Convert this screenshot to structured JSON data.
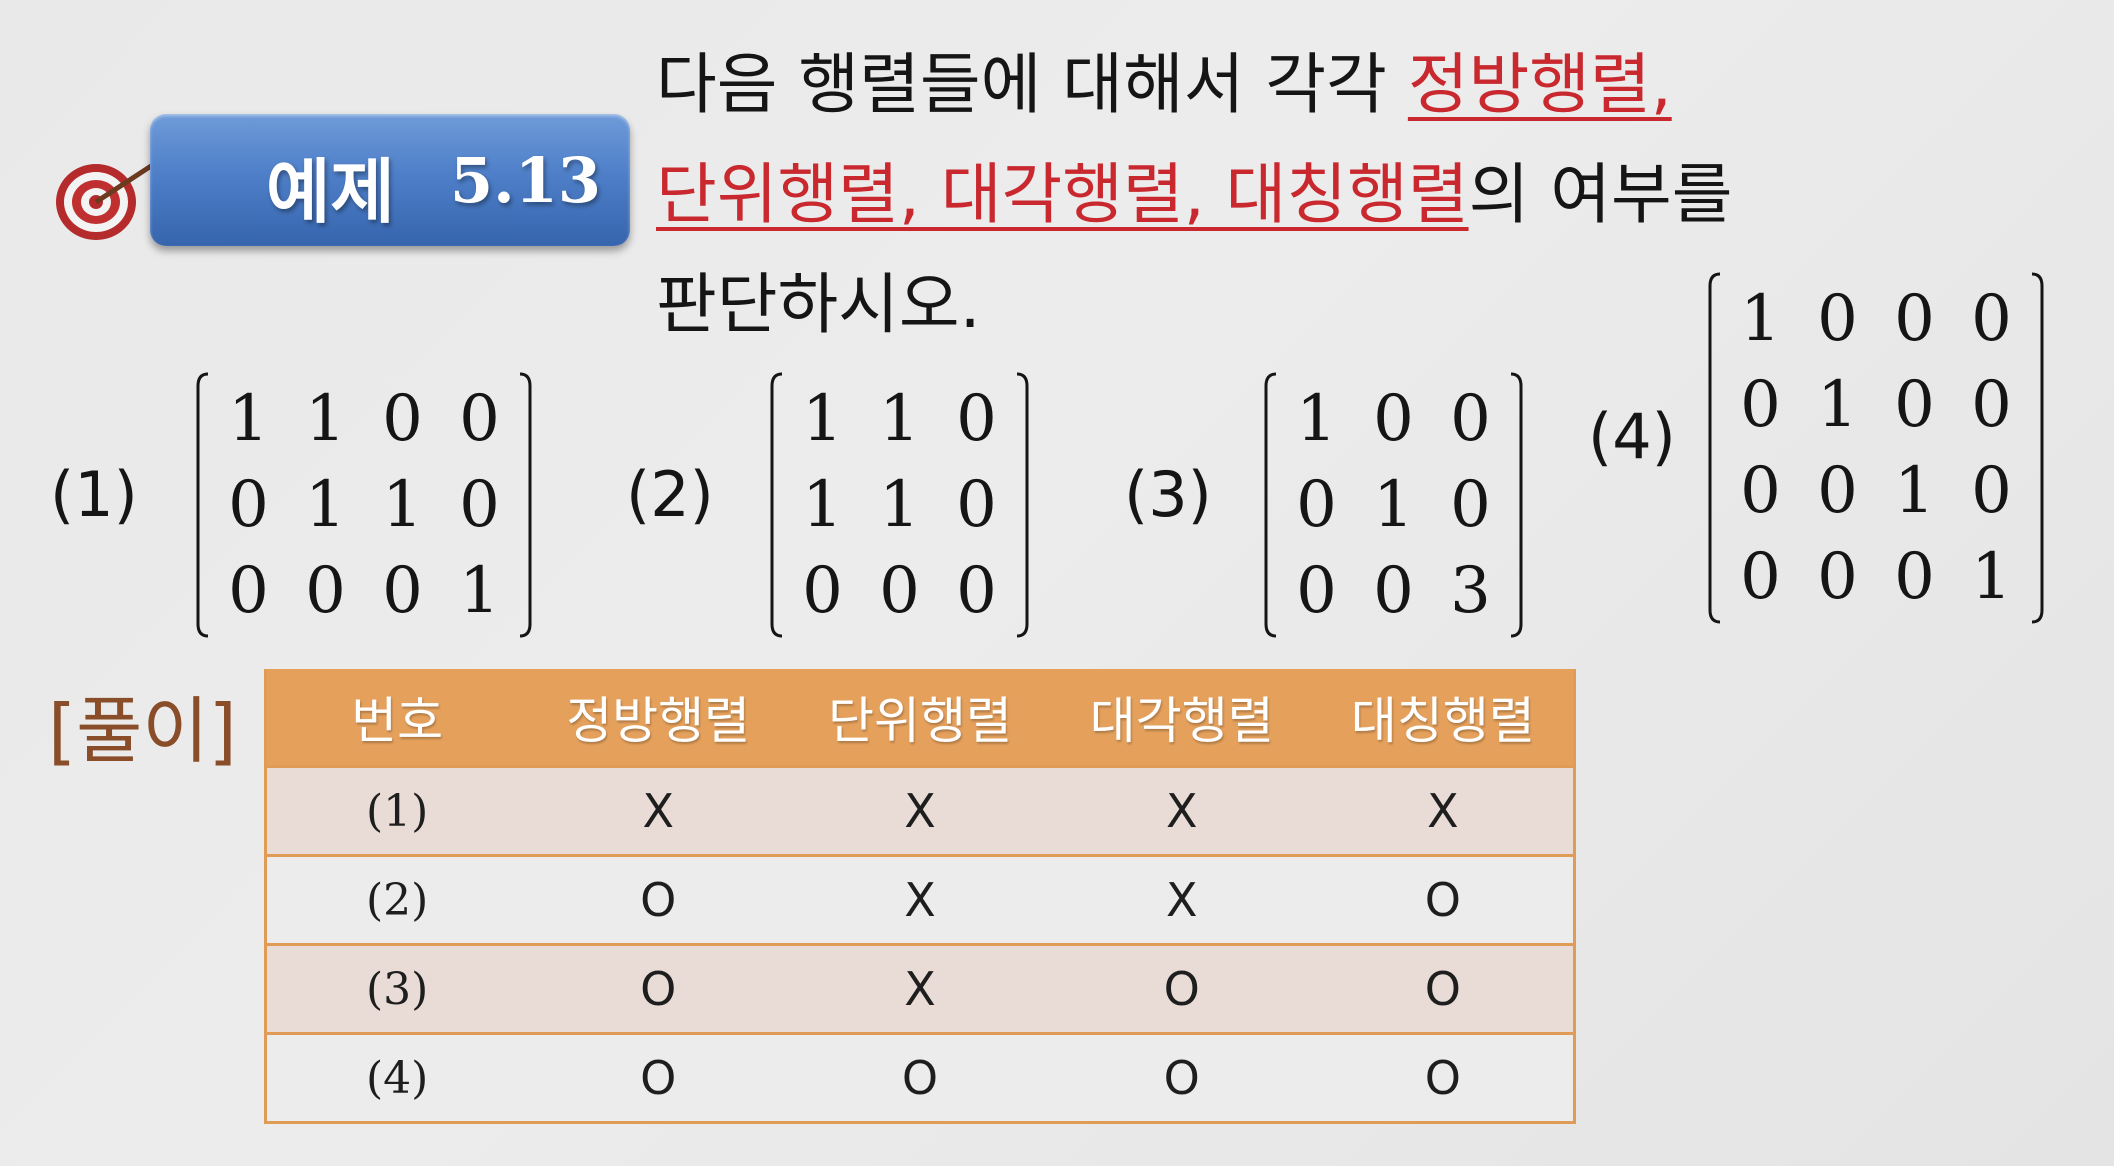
{
  "header": {
    "badge_label": "예제",
    "badge_number": "5.13",
    "badge_icon": "target-icon"
  },
  "statement": {
    "line1_plain": "다음 행렬들에 대해서 각각 ",
    "line1_highlight": "정방행렬,",
    "line2_highlight": "단위행렬, 대각행렬, 대칭행렬",
    "line2_plain": "의 여부를",
    "line3_plain": "판단하시오.",
    "highlight_color": "#c8282e"
  },
  "problems": [
    {
      "label": "(1)",
      "rows": [
        [
          "1",
          "1",
          "0",
          "0"
        ],
        [
          "0",
          "1",
          "1",
          "0"
        ],
        [
          "0",
          "0",
          "0",
          "1"
        ]
      ]
    },
    {
      "label": "(2)",
      "rows": [
        [
          "1",
          "1",
          "0"
        ],
        [
          "1",
          "1",
          "0"
        ],
        [
          "0",
          "0",
          "0"
        ]
      ]
    },
    {
      "label": "(3)",
      "rows": [
        [
          "1",
          "0",
          "0"
        ],
        [
          "0",
          "1",
          "0"
        ],
        [
          "0",
          "0",
          "3"
        ]
      ]
    },
    {
      "label": "(4)",
      "rows": [
        [
          "1",
          "0",
          "0",
          "0"
        ],
        [
          "0",
          "1",
          "0",
          "0"
        ],
        [
          "0",
          "0",
          "1",
          "0"
        ],
        [
          "0",
          "0",
          "0",
          "1"
        ]
      ]
    }
  ],
  "solution": {
    "label": "[풀이]",
    "header_color": "#e5a15c",
    "columns": [
      "번호",
      "정방행렬",
      "단위행렬",
      "대각행렬",
      "대칭행렬"
    ],
    "rows": [
      [
        "(1)",
        "X",
        "X",
        "X",
        "X"
      ],
      [
        "(2)",
        "O",
        "X",
        "X",
        "O"
      ],
      [
        "(3)",
        "O",
        "X",
        "O",
        "O"
      ],
      [
        "(4)",
        "O",
        "O",
        "O",
        "O"
      ]
    ]
  }
}
